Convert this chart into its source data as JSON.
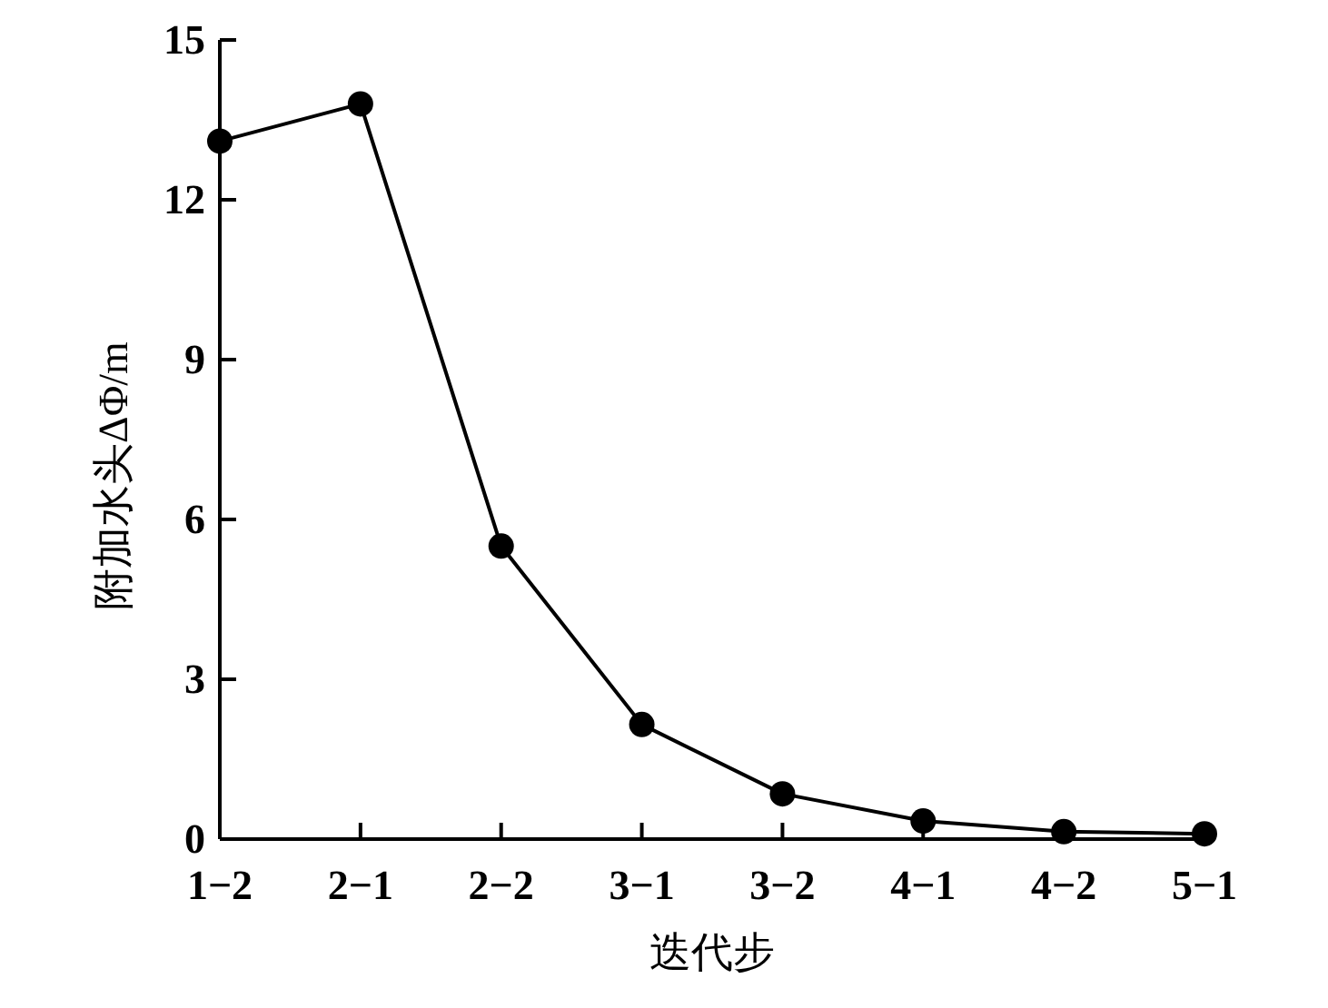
{
  "chart_data": {
    "type": "line",
    "xlabel": "迭代步",
    "ylabel": "附加水头ΔΦ/m",
    "categories": [
      "1−2",
      "2−1",
      "2−2",
      "3−1",
      "3−2",
      "4−1",
      "4−2",
      "5−1"
    ],
    "series": [
      {
        "color": "#000000",
        "values": [
          13.1,
          13.8,
          5.5,
          2.15,
          0.85,
          0.34,
          0.14,
          0.1
        ]
      }
    ],
    "ylim": [
      0,
      15
    ],
    "yticks": [
      0,
      3,
      6,
      9,
      12,
      15
    ],
    "marker": "circle",
    "line_style": "solid"
  }
}
